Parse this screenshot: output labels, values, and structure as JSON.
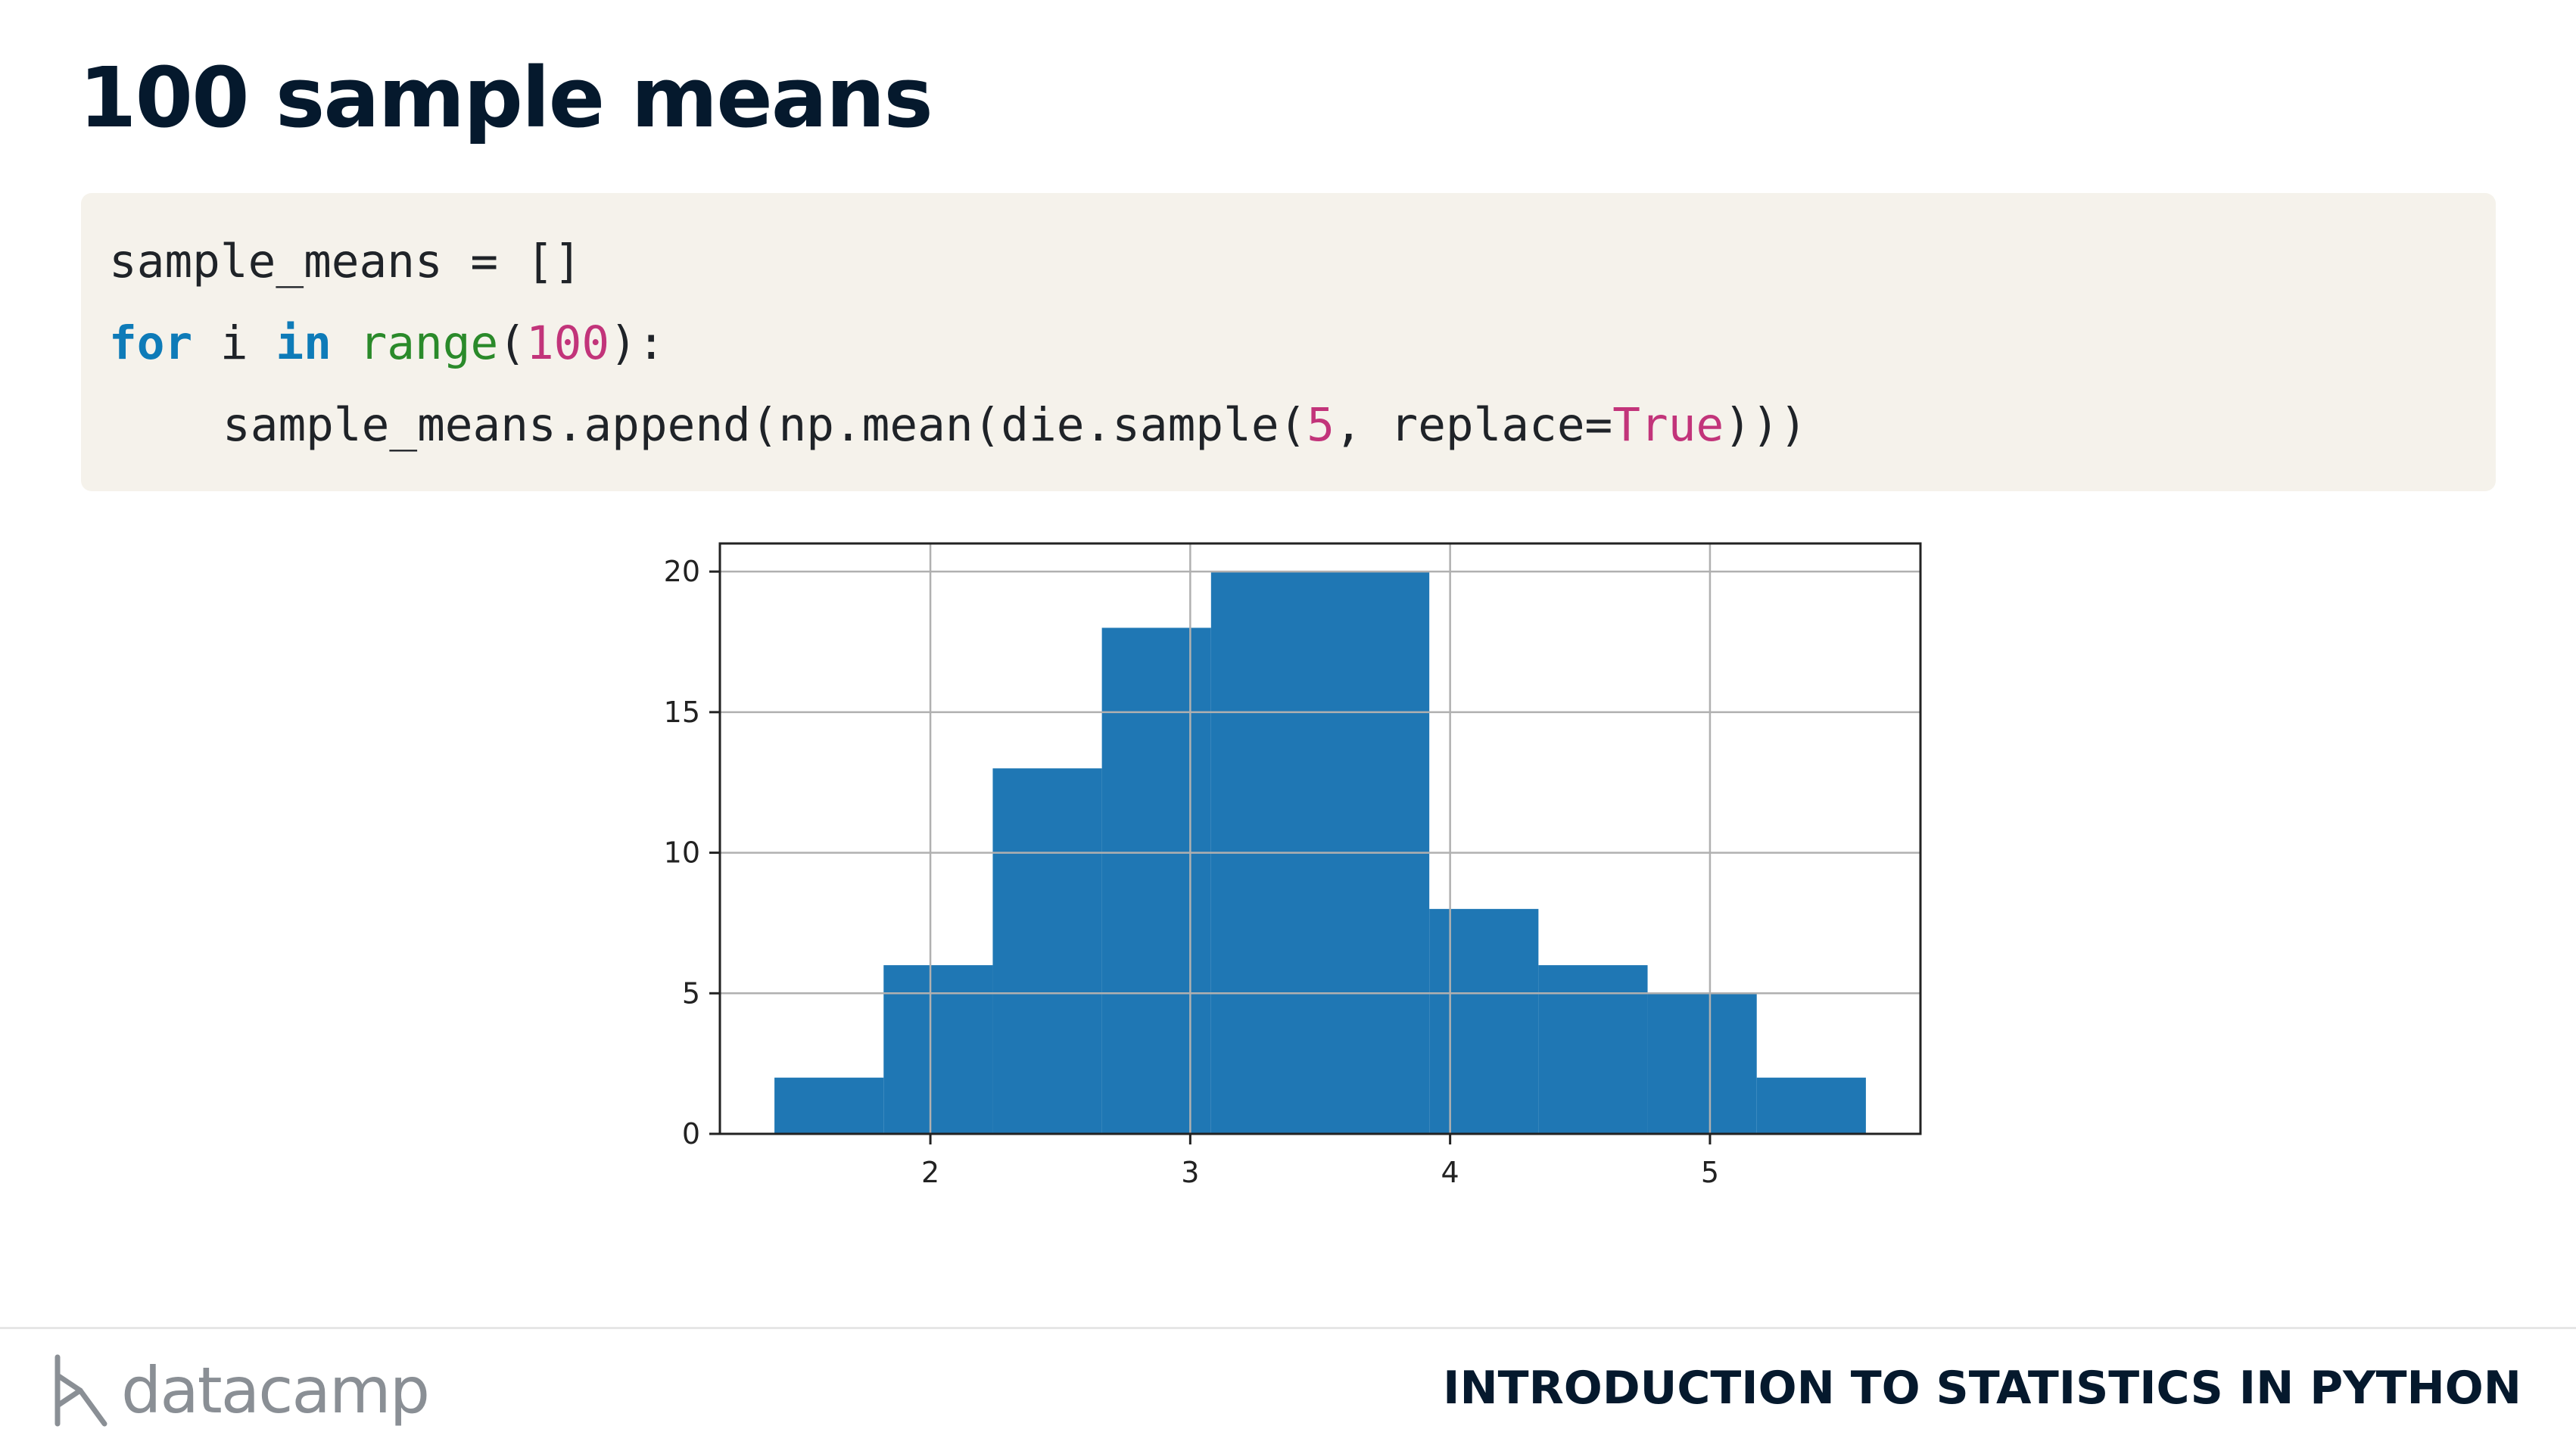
{
  "slide": {
    "title": "100 sample means"
  },
  "code": {
    "line1": {
      "text": "sample_means = []"
    },
    "line2": {
      "kw_for": "for",
      "var": " i ",
      "kw_in": "in",
      "space": " ",
      "fn": "range",
      "open": "(",
      "num": "100",
      "close": "):"
    },
    "line3": {
      "pre": "sample_means.append(np.mean(die.sample(",
      "num": "5",
      "mid": ", replace=",
      "const": "True",
      "post": ")))"
    },
    "colors": {
      "background": "#f5f2eb",
      "keyword": "#0e7bb8",
      "function": "#2a8a2a",
      "number": "#c2347a"
    }
  },
  "chart_data": {
    "type": "bar",
    "bins": [
      {
        "x0": 1.4,
        "x1": 1.82,
        "count": 2
      },
      {
        "x0": 1.82,
        "x1": 2.24,
        "count": 6
      },
      {
        "x0": 2.24,
        "x1": 2.66,
        "count": 13
      },
      {
        "x0": 2.66,
        "x1": 3.08,
        "count": 18
      },
      {
        "x0": 3.08,
        "x1": 3.5,
        "count": 20
      },
      {
        "x0": 3.5,
        "x1": 3.92,
        "count": 20
      },
      {
        "x0": 3.92,
        "x1": 4.34,
        "count": 8
      },
      {
        "x0": 4.34,
        "x1": 4.76,
        "count": 6
      },
      {
        "x0": 4.76,
        "x1": 5.18,
        "count": 5
      },
      {
        "x0": 5.18,
        "x1": 5.6,
        "count": 2
      }
    ],
    "xlim": [
      1.19,
      5.81
    ],
    "ylim": [
      0,
      21
    ],
    "xticks": [
      2,
      3,
      4,
      5
    ],
    "yticks": [
      0,
      5,
      10,
      15,
      20
    ],
    "grid": true,
    "bar_color": "#1f77b4"
  },
  "footer": {
    "brand": "datacamp",
    "course": "INTRODUCTION TO STATISTICS IN PYTHON"
  }
}
